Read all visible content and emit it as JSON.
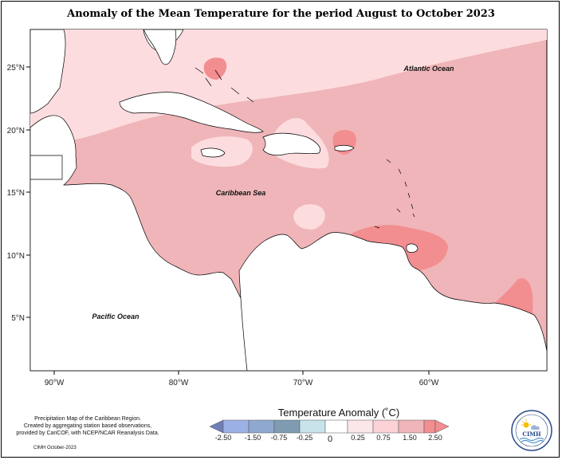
{
  "title": "Anomaly of the Mean Temperature for the period August to October 2023",
  "map": {
    "lon_ticks": [
      "90°W",
      "80°W",
      "70°W",
      "60°W"
    ],
    "lat_ticks": [
      "25°N",
      "20°N",
      "15°N",
      "10°N",
      "5°N"
    ],
    "labels": {
      "atlantic": "Atlantic Ocean",
      "caribbean": "Caribbean Sea",
      "pacific": "Pacific Ocean"
    },
    "colors": {
      "pale": "#fcdcdf",
      "mid": "#efb5b8",
      "strong": "#f28d90",
      "land": "#ffffff"
    }
  },
  "legend": {
    "title": "Temperature Anomaly (˚C)",
    "zero_label": "0",
    "tick_labels": [
      "-2.50",
      "-1.50",
      "-0.75",
      "-0.25",
      "0.25",
      "0.75",
      "1.50",
      "2.50"
    ],
    "colors": [
      "#6e7fb8",
      "#9cb2e6",
      "#7f9cb1",
      "#c8e3ea",
      "#fbe6ea",
      "#fbd1d6",
      "#efb5b8",
      "#f28d90"
    ]
  },
  "credit": {
    "line1": "Precipitation Map of the Caribbean Region.",
    "line2": "Created by aggregating station based observations,",
    "line3": "provided by CariCOF, with NCEP/NCAR Reanalysis Data.",
    "date": "CIMH October-2023"
  },
  "logo": {
    "text": "CIMH"
  }
}
